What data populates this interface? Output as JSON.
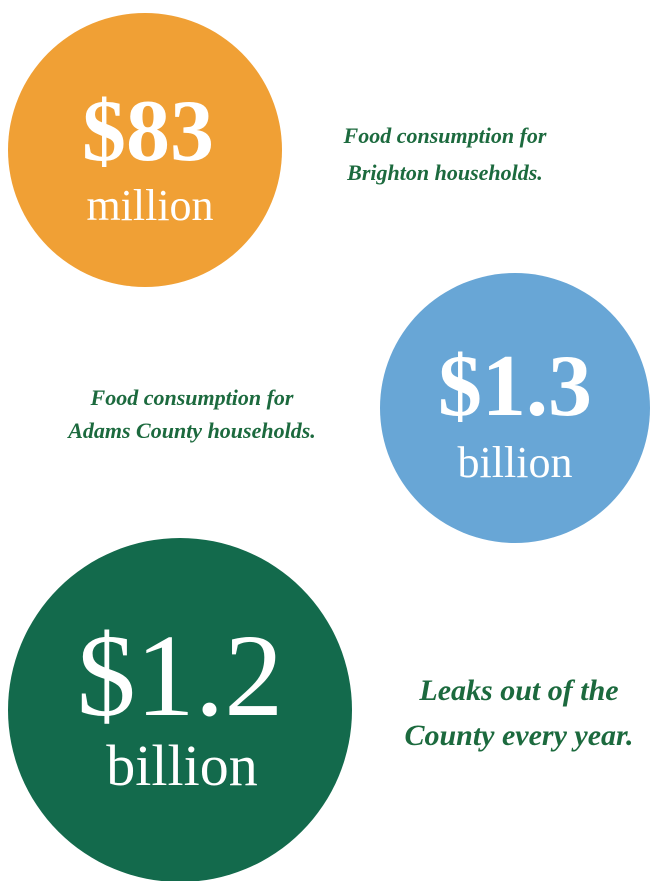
{
  "stats": [
    {
      "amount": "$83",
      "unit": "million",
      "caption": [
        "Food consumption for",
        "Brighton households."
      ]
    },
    {
      "amount": "$1.3",
      "unit": "billion",
      "caption": [
        "Food consumption for",
        "Adams County households."
      ]
    },
    {
      "amount": "$1.2",
      "unit": "billion",
      "caption": [
        "Leaks out of the",
        "County every year."
      ]
    }
  ]
}
